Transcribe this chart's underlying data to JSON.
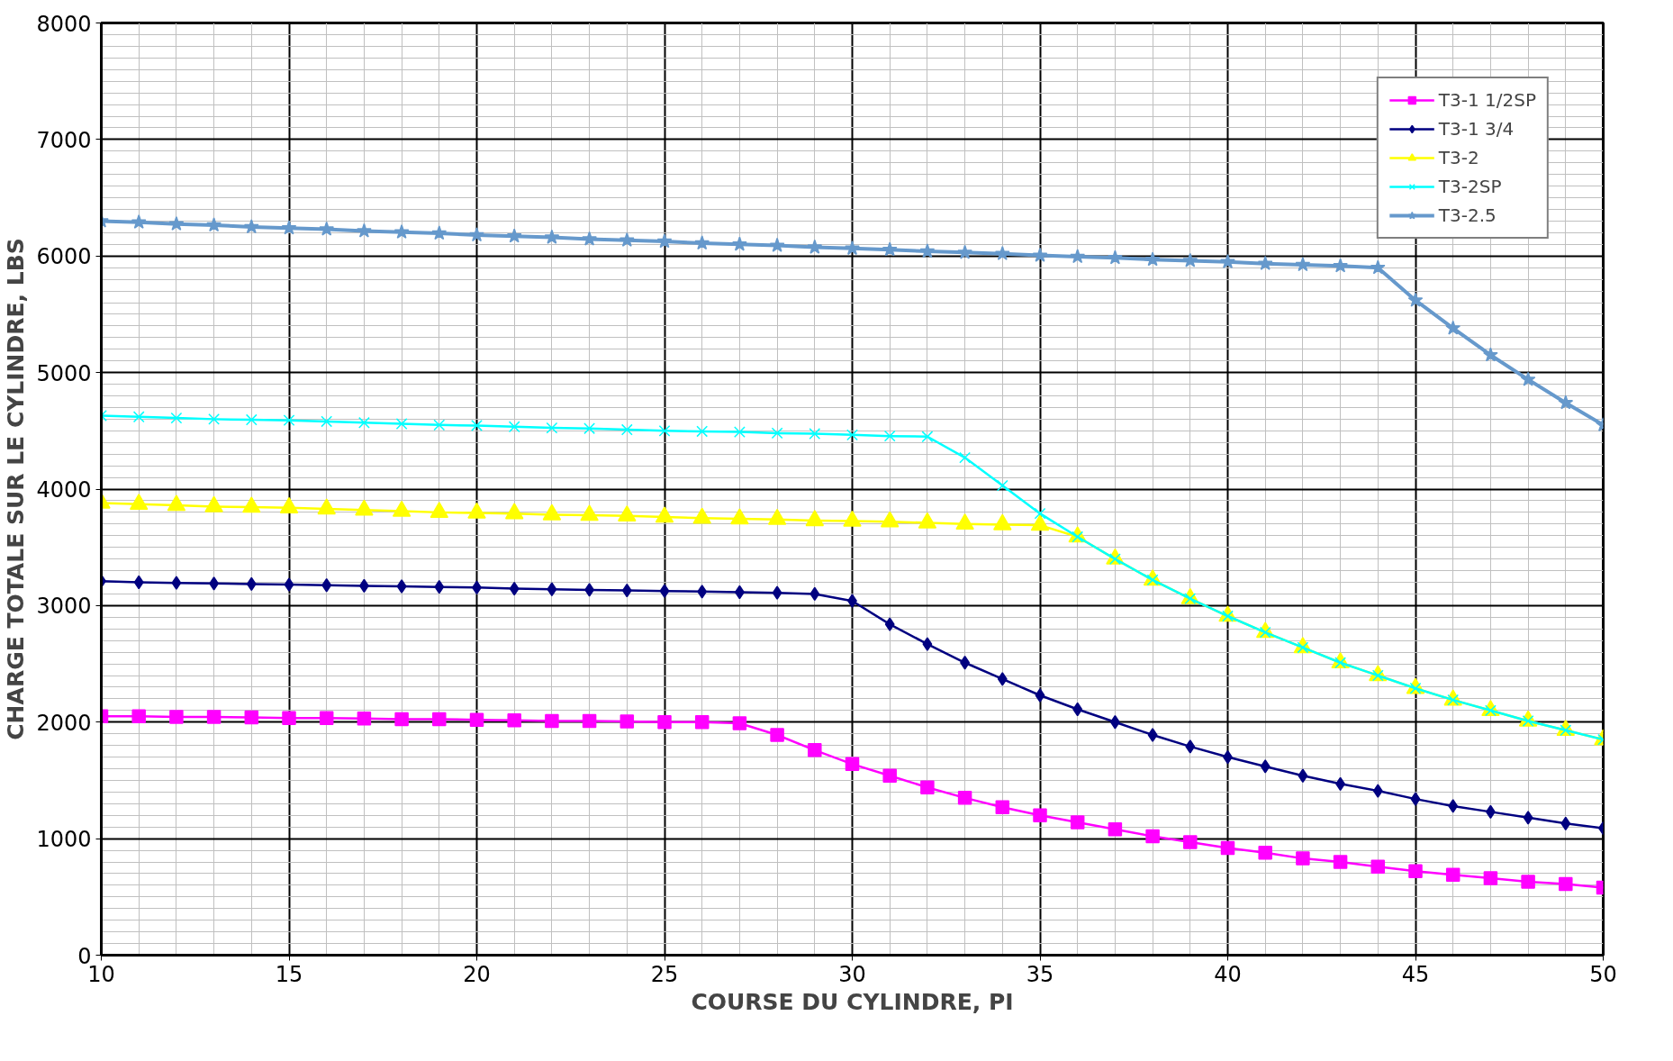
{
  "chart_data": {
    "type": "line",
    "xlabel": "COURSE DU CYLINDRE, PI",
    "ylabel": "CHARGE TOTALE SUR LE CYLINDRE, LBS",
    "x": [
      10,
      11,
      12,
      13,
      14,
      15,
      16,
      17,
      18,
      19,
      20,
      21,
      22,
      23,
      24,
      25,
      26,
      27,
      28,
      29,
      30,
      31,
      32,
      33,
      34,
      35,
      36,
      37,
      38,
      39,
      40,
      41,
      42,
      43,
      44,
      45,
      46,
      47,
      48,
      49,
      50
    ],
    "xlim": [
      10,
      50
    ],
    "xticks": [
      10,
      15,
      20,
      25,
      30,
      35,
      40,
      45,
      50
    ],
    "ylim": [
      0,
      8000
    ],
    "yticks": [
      0,
      1000,
      2000,
      3000,
      4000,
      5000,
      6000,
      7000,
      8000
    ],
    "grid": true,
    "legend": "top right",
    "line_style": "solid",
    "series": [
      {
        "name": "T3-1 1/2SP",
        "color": "#ff00ff",
        "marker": "square",
        "values": [
          2050,
          2050,
          2045,
          2045,
          2040,
          2035,
          2035,
          2030,
          2025,
          2025,
          2020,
          2015,
          2010,
          2010,
          2005,
          2000,
          2000,
          1990,
          1890,
          1760,
          1640,
          1540,
          1440,
          1350,
          1270,
          1200,
          1140,
          1080,
          1020,
          970,
          920,
          880,
          830,
          800,
          760,
          720,
          690,
          660,
          630,
          610,
          580
        ]
      },
      {
        "name": "T3-1 3/4",
        "color": "#000080",
        "marker": "diamond",
        "values": [
          3210,
          3200,
          3195,
          3190,
          3185,
          3180,
          3175,
          3170,
          3165,
          3160,
          3155,
          3145,
          3140,
          3135,
          3130,
          3125,
          3120,
          3115,
          3110,
          3100,
          3040,
          2840,
          2670,
          2510,
          2370,
          2230,
          2110,
          2000,
          1890,
          1790,
          1700,
          1620,
          1540,
          1470,
          1410,
          1340,
          1280,
          1230,
          1180,
          1130,
          1090
        ]
      },
      {
        "name": "T3-2",
        "color": "#ffff00",
        "marker": "triangle",
        "values": [
          3880,
          3870,
          3860,
          3850,
          3845,
          3840,
          3830,
          3820,
          3810,
          3800,
          3795,
          3790,
          3780,
          3775,
          3770,
          3760,
          3750,
          3745,
          3740,
          3730,
          3725,
          3720,
          3710,
          3700,
          3695,
          3690,
          3590,
          3400,
          3220,
          3060,
          2910,
          2770,
          2640,
          2510,
          2400,
          2290,
          2190,
          2100,
          2010,
          1930,
          1850
        ]
      },
      {
        "name": "T3-2SP",
        "color": "#00ffff",
        "marker": "cross",
        "values": [
          4630,
          4620,
          4610,
          4600,
          4595,
          4590,
          4580,
          4570,
          4560,
          4550,
          4545,
          4535,
          4525,
          4520,
          4510,
          4500,
          4495,
          4490,
          4480,
          4475,
          4465,
          4455,
          4450,
          4270,
          4030,
          3790,
          3590,
          3400,
          3220,
          3060,
          2910,
          2770,
          2640,
          2510,
          2400,
          2290,
          2190,
          2100,
          2010,
          1930,
          1850
        ]
      },
      {
        "name": "T3-2.5",
        "color": "#6699cc",
        "marker": "star",
        "values": [
          6300,
          6290,
          6275,
          6265,
          6250,
          6240,
          6230,
          6215,
          6205,
          6195,
          6180,
          6170,
          6160,
          6145,
          6135,
          6125,
          6110,
          6100,
          6090,
          6075,
          6065,
          6055,
          6040,
          6030,
          6020,
          6005,
          5995,
          5985,
          5970,
          5960,
          5950,
          5935,
          5925,
          5915,
          5900,
          5620,
          5380,
          5150,
          4940,
          4740,
          4550
        ]
      }
    ]
  }
}
